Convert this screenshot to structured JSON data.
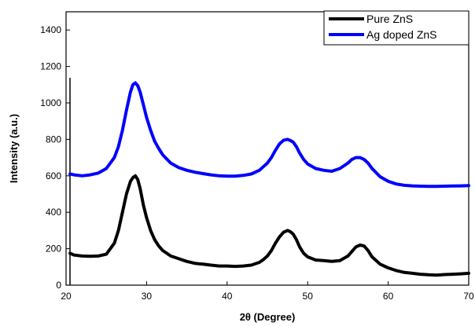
{
  "chart_data": {
    "type": "line",
    "title": "",
    "xlabel": "2θ (Degree)",
    "ylabel": "Intensity (a.u.)",
    "xlim": [
      20,
      70
    ],
    "ylim": [
      0,
      1500
    ],
    "xticks": [
      "20",
      "30",
      "40",
      "50",
      "60",
      "70"
    ],
    "yticks": [
      "0",
      "200",
      "400",
      "600",
      "800",
      "1000",
      "1200",
      "1400"
    ],
    "grid": false,
    "legend_position": "top-right",
    "series": [
      {
        "name": "Pure ZnS",
        "color": "#000000",
        "x": [
          20.5,
          21,
          22,
          23,
          24,
          25,
          26,
          26.5,
          27,
          27.5,
          28,
          28.3,
          28.6,
          28.9,
          29.2,
          29.6,
          30,
          30.5,
          31,
          31.5,
          32,
          33,
          34,
          35,
          36,
          37,
          38,
          39,
          40,
          41,
          42,
          43,
          44,
          44.5,
          45,
          45.5,
          46,
          46.5,
          47,
          47.5,
          47.8,
          48.2,
          48.6,
          49,
          49.5,
          50,
          51,
          52,
          53,
          54,
          55,
          55.5,
          56,
          56.5,
          57,
          57.5,
          58,
          59,
          60,
          61,
          62,
          63,
          64,
          65,
          66,
          67,
          68,
          69,
          70
        ],
        "y": [
          175,
          165,
          160,
          158,
          160,
          170,
          230,
          300,
          400,
          500,
          570,
          590,
          600,
          580,
          530,
          440,
          370,
          300,
          250,
          215,
          190,
          160,
          145,
          130,
          120,
          115,
          110,
          105,
          105,
          103,
          105,
          110,
          125,
          140,
          160,
          190,
          230,
          265,
          290,
          300,
          295,
          280,
          250,
          210,
          175,
          155,
          138,
          135,
          130,
          135,
          160,
          185,
          210,
          220,
          215,
          190,
          155,
          115,
          95,
          80,
          70,
          65,
          60,
          57,
          55,
          58,
          60,
          62,
          65
        ]
      },
      {
        "name": "Ag doped ZnS",
        "color": "#0000ff",
        "x": [
          20.5,
          21,
          22,
          23,
          24,
          25,
          26,
          26.5,
          27,
          27.5,
          28,
          28.3,
          28.6,
          28.9,
          29.2,
          29.6,
          30,
          30.5,
          31,
          31.5,
          32,
          33,
          34,
          35,
          36,
          37,
          38,
          39,
          40,
          41,
          42,
          43,
          44,
          44.5,
          45,
          45.5,
          46,
          46.5,
          47,
          47.5,
          47.8,
          48.2,
          48.6,
          49,
          49.5,
          50,
          51,
          52,
          53,
          54,
          55,
          55.5,
          56,
          56.5,
          57,
          57.5,
          58,
          59,
          60,
          61,
          62,
          63,
          64,
          65,
          66,
          67,
          68,
          69,
          70
        ],
        "y": [
          610,
          605,
          600,
          605,
          615,
          640,
          700,
          760,
          850,
          960,
          1060,
          1100,
          1110,
          1095,
          1060,
          990,
          920,
          850,
          790,
          750,
          715,
          670,
          645,
          630,
          620,
          612,
          605,
          600,
          598,
          598,
          602,
          610,
          630,
          650,
          670,
          700,
          740,
          775,
          795,
          800,
          795,
          785,
          760,
          725,
          690,
          665,
          640,
          630,
          625,
          640,
          670,
          690,
          700,
          700,
          690,
          670,
          640,
          595,
          570,
          555,
          548,
          545,
          543,
          542,
          542,
          543,
          544,
          545,
          546
        ]
      }
    ]
  }
}
